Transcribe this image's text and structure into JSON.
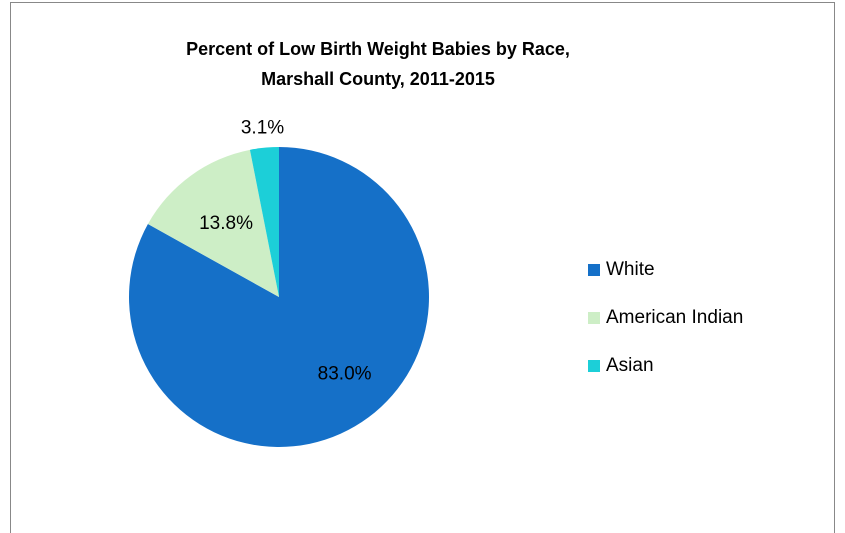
{
  "chart_data": {
    "type": "pie",
    "title": "Percent of Low Birth Weight Babies by Race,",
    "subtitle": "Marshall County, 2011-2015",
    "categories": [
      "White",
      "American Indian",
      "Asian"
    ],
    "values": [
      83.0,
      13.8,
      3.1
    ],
    "value_labels": [
      "83.0%",
      "13.8%",
      "3.1%"
    ],
    "colors": [
      "#1570c8",
      "#cdeec6",
      "#1ccfd8"
    ],
    "legend": "right"
  }
}
